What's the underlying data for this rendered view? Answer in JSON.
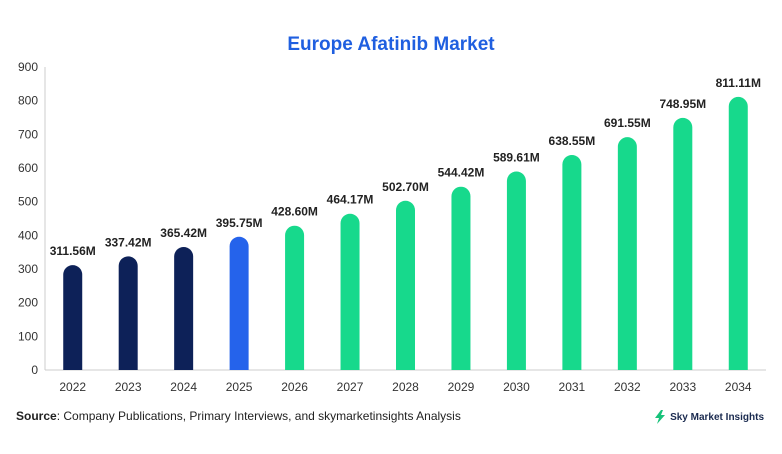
{
  "chart_data": {
    "type": "bar",
    "title": "Europe Afatinib Market",
    "categories": [
      "2022",
      "2023",
      "2024",
      "2025",
      "2026",
      "2027",
      "2028",
      "2029",
      "2030",
      "2031",
      "2032",
      "2033",
      "2034"
    ],
    "values": [
      311.56,
      337.42,
      365.42,
      395.75,
      428.6,
      464.17,
      502.7,
      544.42,
      589.61,
      638.55,
      691.55,
      748.95,
      811.11
    ],
    "data_labels": [
      "311.56M",
      "337.42M",
      "365.42M",
      "395.75M",
      "428.60M",
      "464.17M",
      "502.70M",
      "544.42M",
      "589.61M",
      "638.55M",
      "691.55M",
      "748.95M",
      "811.11M"
    ],
    "yticks": [
      0,
      100,
      200,
      300,
      400,
      500,
      600,
      700,
      800,
      900
    ],
    "ylim": [
      0,
      900
    ],
    "xlabel": "",
    "ylabel": "",
    "grid": false,
    "colors": {
      "historical": "#0d2158",
      "current": "#2563eb",
      "forecast": "#17d98c",
      "title": "#1f5fe0"
    },
    "bar_color_groups": [
      "historical",
      "historical",
      "historical",
      "current",
      "forecast",
      "forecast",
      "forecast",
      "forecast",
      "forecast",
      "forecast",
      "forecast",
      "forecast",
      "forecast"
    ]
  },
  "footer": {
    "source_label": "Source",
    "source_text": ": Company Publications, Primary Interviews, and skymarketinsights Analysis",
    "brand_name": "Sky Market Insights",
    "brand_icon": "lightning-bolt-icon"
  }
}
